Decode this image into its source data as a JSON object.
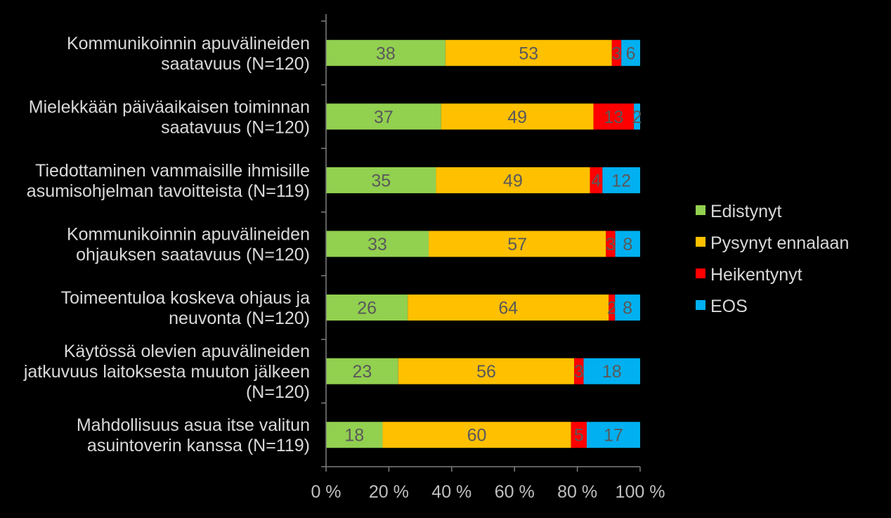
{
  "chart_data": {
    "type": "bar",
    "orientation": "horizontal",
    "stacked": true,
    "percent_stacked": true,
    "categories": [
      [
        "Kommunikoinnin apuvälineiden",
        "saatavuus (N=120)"
      ],
      [
        "Mielekkään päiväaikaisen toiminnan",
        "saatavuus (N=120)"
      ],
      [
        "Tiedottaminen vammaisille ihmisille",
        "asumisohjelman tavoitteista (N=119)"
      ],
      [
        "Kommunikoinnin apuvälineiden",
        "ohjauksen saatavuus (N=120)"
      ],
      [
        "Toimeentuloa koskeva ohjaus ja",
        "neuvonta (N=120)"
      ],
      [
        "Käytössä olevien apuvälineiden",
        "jatkuvuus laitoksesta muuton jälkeen",
        "(N=120)"
      ],
      [
        "Mahdollisuus asua itse valitun",
        "asuintoverin kanssa (N=119)"
      ]
    ],
    "series": [
      {
        "name": "Edistynyt",
        "color": "#92d050",
        "values": [
          38,
          37,
          35,
          33,
          26,
          23,
          18
        ]
      },
      {
        "name": "Pysynyt ennalaan",
        "color": "#ffc000",
        "values": [
          53,
          49,
          49,
          57,
          64,
          56,
          60
        ]
      },
      {
        "name": "Heikentynyt",
        "color": "#ff0000",
        "values": [
          3,
          13,
          4,
          3,
          2,
          3,
          5
        ]
      },
      {
        "name": "EOS",
        "color": "#00b0f0",
        "values": [
          6,
          2,
          12,
          8,
          8,
          18,
          17
        ]
      }
    ],
    "x_ticks": [
      "0 %",
      "20 %",
      "40 %",
      "60 %",
      "80 %",
      "100 %"
    ],
    "xlim": [
      0,
      100
    ],
    "grid": false,
    "legend_position": "right"
  }
}
